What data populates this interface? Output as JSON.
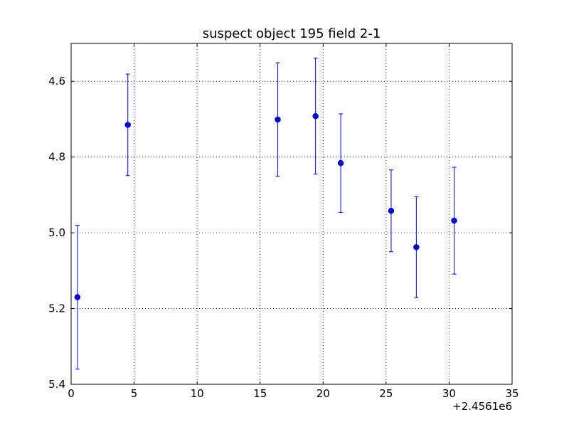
{
  "chart_data": {
    "type": "errorbar",
    "title": "suspect object 195 field 2-1",
    "x_offset_label": "+2.4561e6",
    "series": [
      {
        "color": "#0000ff",
        "x": [
          0.5,
          4.5,
          16.4,
          19.4,
          21.4,
          25.4,
          27.4,
          30.4
        ],
        "values": [
          5.17,
          4.715,
          4.701,
          4.692,
          4.816,
          4.942,
          5.038,
          4.968
        ],
        "errors": [
          0.19,
          0.134,
          0.15,
          0.153,
          0.13,
          0.108,
          0.133,
          0.141
        ]
      }
    ],
    "xlim": [
      0,
      35
    ],
    "xticks": [
      0,
      5,
      10,
      15,
      20,
      25,
      30,
      35
    ],
    "ylim": [
      4.5,
      5.4
    ],
    "invert_y": true,
    "yticks": [
      4.6,
      4.8,
      {
        "value": 5.0,
        "label": "5.0"
      },
      5.2,
      5.4
    ],
    "grid": true
  }
}
